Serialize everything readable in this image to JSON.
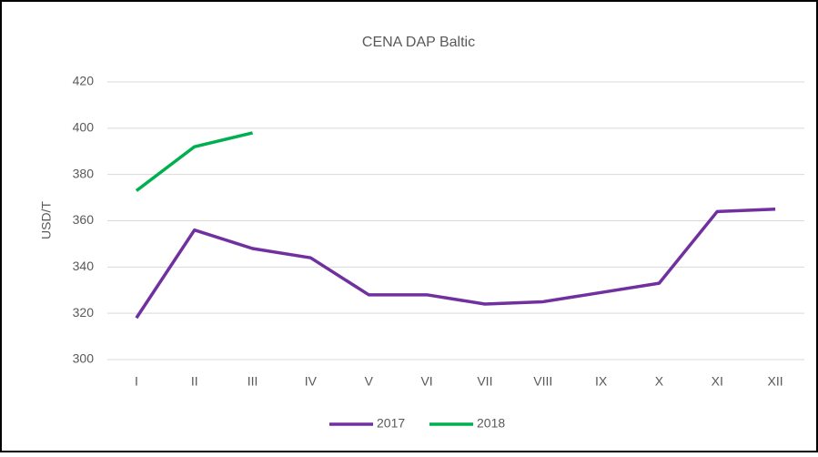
{
  "chart_data": {
    "type": "line",
    "title": "CENA DAP Baltic",
    "y_label": "USD/T",
    "categories": [
      "I",
      "II",
      "III",
      "IV",
      "V",
      "VI",
      "VII",
      "VIII",
      "IX",
      "X",
      "XI",
      "XII"
    ],
    "series": [
      {
        "name": "2017",
        "color": "#7030a0",
        "values": [
          318,
          356,
          348,
          344,
          328,
          328,
          324,
          325,
          329,
          333,
          364,
          365
        ]
      },
      {
        "name": "2018",
        "color": "#00b050",
        "values": [
          373,
          392,
          398,
          null,
          null,
          null,
          null,
          null,
          null,
          null,
          null,
          null
        ]
      }
    ],
    "ylim": [
      300,
      420
    ],
    "yticks": [
      300,
      320,
      340,
      360,
      380,
      400,
      420
    ],
    "grid": true,
    "legend": "bottom"
  }
}
